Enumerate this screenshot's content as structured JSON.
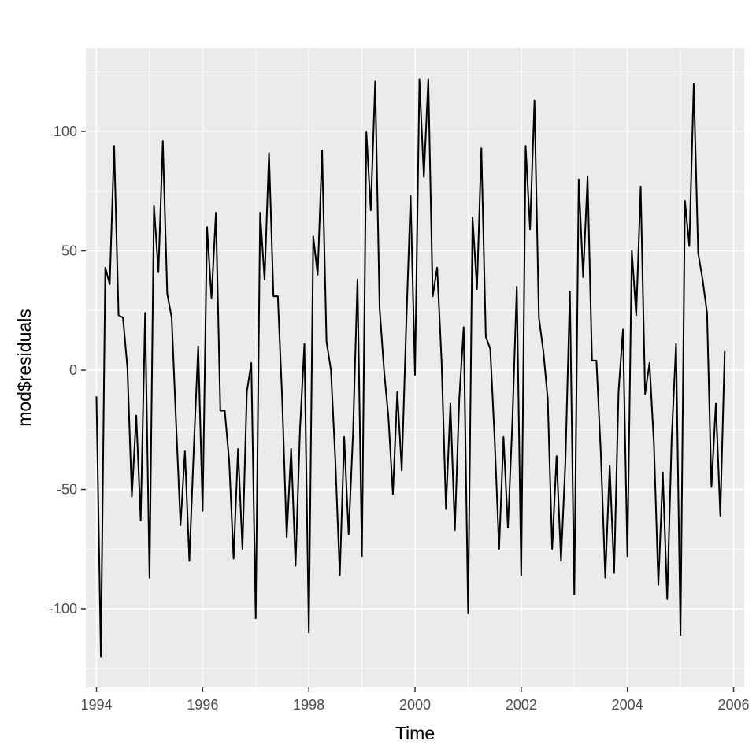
{
  "chart_data": {
    "type": "line",
    "title": "",
    "xlabel": "Time",
    "ylabel": "mod$residuals",
    "xlim": [
      1993.8,
      2006.2
    ],
    "ylim": [
      -133,
      135
    ],
    "x_ticks": [
      1994,
      1996,
      1998,
      2000,
      2002,
      2004,
      2006
    ],
    "x_tick_labels": [
      "1994",
      "1996",
      "1998",
      "2000",
      "2002",
      "2004",
      "2006"
    ],
    "y_ticks": [
      -100,
      -50,
      0,
      50,
      100
    ],
    "y_tick_labels": [
      "-100",
      "-50",
      "0",
      "50",
      "100"
    ],
    "grid": true,
    "legend": "none",
    "colors": {
      "panel": "#ebebeb",
      "grid": "#ffffff",
      "line": "#000000"
    },
    "series": [
      {
        "start": 1994,
        "frequency": 12,
        "values": [
          -11,
          -120,
          43,
          36,
          94,
          23,
          22,
          1,
          -53,
          -19,
          -63,
          24,
          -87,
          69,
          41,
          96,
          32,
          22,
          -22,
          -65,
          -34,
          -80,
          -33,
          10,
          -59,
          60,
          30,
          66,
          -17,
          -17,
          -38,
          -79,
          -33,
          -75,
          -9,
          3,
          -104,
          66,
          38,
          91,
          31,
          31,
          -13,
          -70,
          -33,
          -82,
          -25,
          11,
          -110,
          56,
          40,
          92,
          12,
          0,
          -38,
          -86,
          -28,
          -69,
          -26,
          38,
          -78,
          100,
          67,
          121,
          26,
          0,
          -20,
          -52,
          -9,
          -42,
          18,
          73,
          -2,
          122,
          81,
          122,
          31,
          43,
          4,
          -58,
          -14,
          -67,
          -12,
          18,
          -102,
          64,
          34,
          93,
          14,
          9,
          -29,
          -75,
          -28,
          -66,
          -22,
          35,
          -86,
          94,
          59,
          113,
          22,
          8,
          -12,
          -75,
          -36,
          -80,
          -38,
          33,
          -94,
          80,
          39,
          81,
          4,
          4,
          -35,
          -87,
          -40,
          -85,
          -9,
          17,
          -78,
          50,
          23,
          77,
          -10,
          3,
          -31,
          -90,
          -43,
          -96,
          -29,
          11,
          -111,
          71,
          52,
          120,
          49,
          38,
          24,
          -49,
          -14,
          -61,
          8
        ]
      }
    ]
  }
}
